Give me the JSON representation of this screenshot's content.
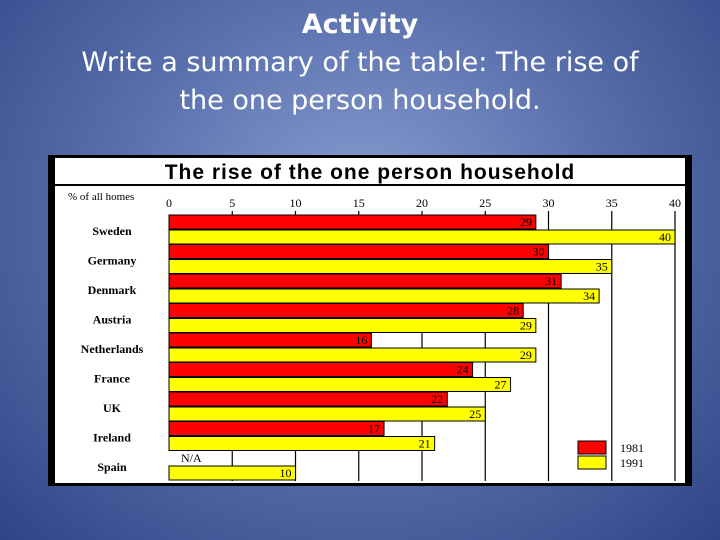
{
  "slide": {
    "heading": "Activity",
    "line1": "Write a summary of the table: The rise of",
    "line2": "the one person household."
  },
  "chart_data": {
    "type": "bar",
    "orientation": "horizontal",
    "title": "The rise of the one person household",
    "ylabel": "% of all homes",
    "xlim": [
      0,
      40
    ],
    "xticks": [
      0,
      5,
      10,
      15,
      20,
      25,
      30,
      35,
      40
    ],
    "categories": [
      "Sweden",
      "Germany",
      "Denmark",
      "Austria",
      "Netherlands",
      "France",
      "UK",
      "Ireland",
      "Spain"
    ],
    "series": [
      {
        "name": "1981",
        "color": "#ff0000",
        "values": [
          29,
          30,
          31,
          28,
          16,
          24,
          22,
          17,
          null
        ],
        "labels": [
          "29",
          "30",
          "31",
          "28",
          "16",
          "24",
          "22",
          "17",
          "N/A"
        ]
      },
      {
        "name": "1991",
        "color": "#ffff00",
        "values": [
          40,
          35,
          34,
          29,
          29,
          27,
          25,
          21,
          10
        ],
        "labels": [
          "40",
          "35",
          "34",
          "29",
          "29",
          "27",
          "25",
          "21",
          "10"
        ]
      }
    ],
    "legend_position": "bottom-right",
    "grid": true
  },
  "colors": {
    "background": "#3a4f95",
    "panel": "#000000",
    "plot_area": "#ffffff",
    "bar_1981": "#ff0000",
    "bar_1991": "#ffff00"
  }
}
